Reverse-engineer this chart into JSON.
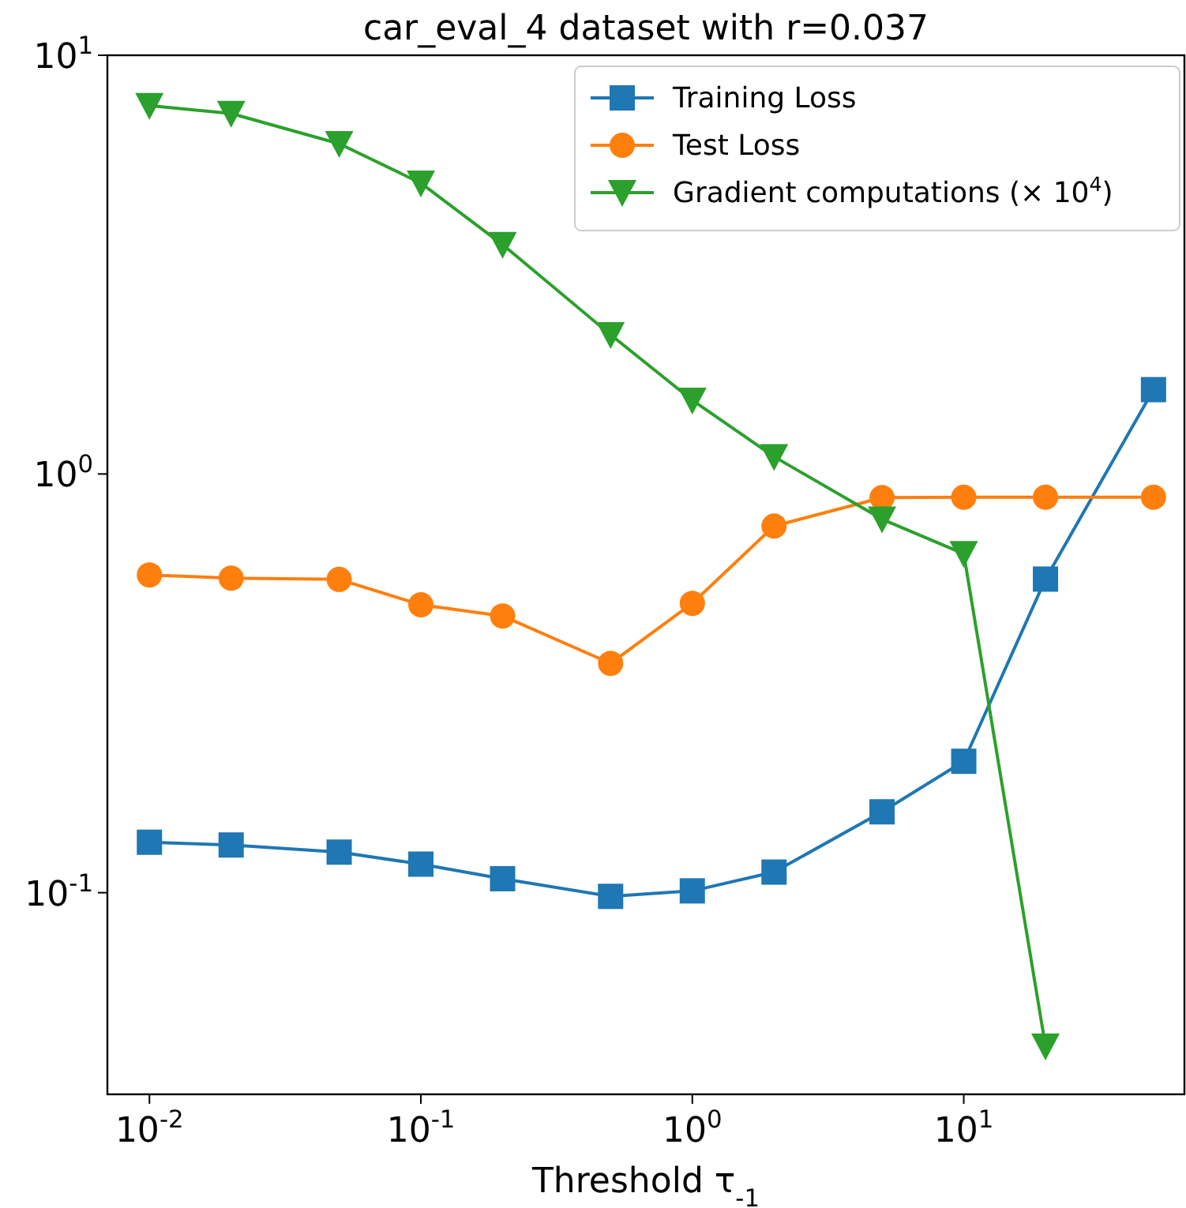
{
  "chart_data": {
    "type": "line",
    "title": "car_eval_4 dataset with r=0.037",
    "xlabel": "Threshold τ$_{-1}$",
    "log": "xy",
    "grid": false,
    "legend": "top right",
    "x": [
      0.01,
      0.02,
      0.05,
      0.1,
      0.2,
      0.5,
      1,
      2,
      5,
      10,
      20,
      50
    ],
    "xlim": [
      0.007,
      65
    ],
    "ylim": [
      0.033,
      10
    ],
    "xticks": [
      {
        "value": 0.01,
        "label": "10$^{-2}$"
      },
      {
        "value": 0.1,
        "label": "10$^{-1}$"
      },
      {
        "value": 1,
        "label": "10$^{0}$"
      },
      {
        "value": 10,
        "label": "10$^{1}$"
      }
    ],
    "yticks": [
      {
        "value": 0.1,
        "label": "10$^{-1}$"
      },
      {
        "value": 1,
        "label": "10$^{0}$"
      },
      {
        "value": 10,
        "label": "10$^{1}$"
      }
    ],
    "series": [
      {
        "name": "Training Loss",
        "color": "#1f77b4",
        "marker": "square",
        "values": [
          0.132,
          0.13,
          0.125,
          0.117,
          0.108,
          0.098,
          0.101,
          0.112,
          0.156,
          0.206,
          0.561,
          1.59
        ]
      },
      {
        "name": "Test Loss",
        "color": "#ff7f0e",
        "marker": "circle",
        "values": [
          0.574,
          0.564,
          0.56,
          0.487,
          0.458,
          0.353,
          0.491,
          0.751,
          0.878,
          0.88,
          0.88,
          0.88
        ]
      },
      {
        "name": "Gradient computations (× 10$^{4}$)",
        "color": "#2ca02c",
        "marker": "triangle",
        "values": [
          7.58,
          7.26,
          6.15,
          4.95,
          3.53,
          2.15,
          1.5,
          1.1,
          0.78,
          0.645,
          0.043,
          null
        ]
      }
    ]
  }
}
